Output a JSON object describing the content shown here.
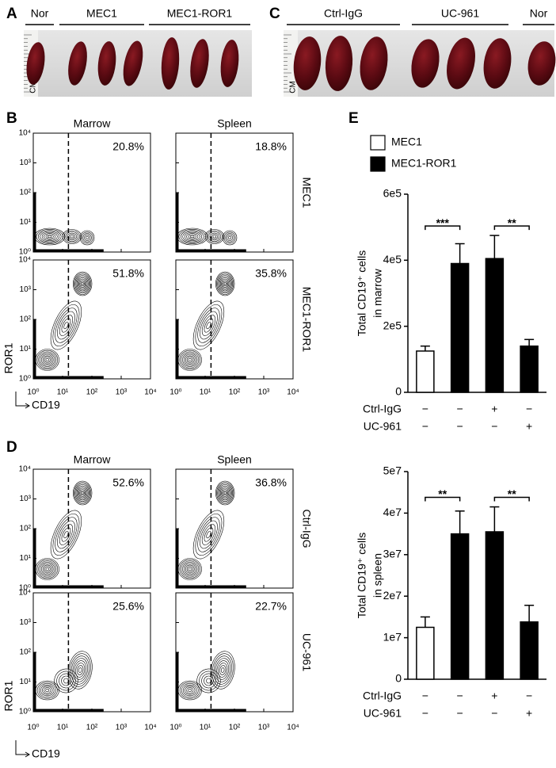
{
  "panel_labels": [
    "A",
    "B",
    "C",
    "D",
    "E"
  ],
  "photo_a": {
    "groups": [
      "Nor",
      "MEC1",
      "MEC1-ROR1"
    ],
    "ruler": "CM"
  },
  "photo_c": {
    "groups": [
      "Ctrl-IgG",
      "UC-961",
      "Nor"
    ],
    "ruler": "CM"
  },
  "flow_b": {
    "columns": [
      "Marrow",
      "Spleen"
    ],
    "rows": [
      "MEC1",
      "MEC1-ROR1"
    ],
    "percentages": [
      [
        "20.8%",
        "18.8%"
      ],
      [
        "51.8%",
        "35.8%"
      ]
    ],
    "ticks": [
      "10⁰",
      "10¹",
      "10²",
      "10³",
      "10⁴"
    ],
    "y_label": "ROR1",
    "x_label": "CD19"
  },
  "flow_d": {
    "columns": [
      "Marrow",
      "Spleen"
    ],
    "rows": [
      "Ctrl-IgG",
      "UC-961"
    ],
    "percentages": [
      [
        "52.6%",
        "36.8%"
      ],
      [
        "25.6%",
        "22.7%"
      ]
    ],
    "ticks": [
      "10⁰",
      "10¹",
      "10²",
      "10³",
      "10⁴"
    ],
    "y_label": "ROR1",
    "x_label": "CD19"
  },
  "chart_data": [
    {
      "type": "bar",
      "y_label": [
        "Total CD19⁺ cells",
        "in marrow"
      ],
      "categories": [
        null,
        null,
        null,
        null
      ],
      "series": [
        {
          "name": "MEC1",
          "color": "#ffffff",
          "values": [
            125000,
            null,
            null,
            null
          ],
          "errors": [
            15000,
            null,
            null,
            null
          ]
        },
        {
          "name": "MEC1-ROR1",
          "color": "#000000",
          "values": [
            null,
            390000,
            405000,
            140000
          ],
          "errors": [
            null,
            60000,
            70000,
            20000
          ]
        }
      ],
      "ylim": [
        0,
        600000
      ],
      "yticks": [
        0,
        {
          "value": 200000,
          "label": "2e5"
        },
        {
          "value": 400000,
          "label": "4e5"
        },
        {
          "value": 600000,
          "label": "6e5"
        }
      ],
      "treatments": [
        {
          "name": "Ctrl-IgG",
          "values": [
            "−",
            "−",
            "+",
            "−"
          ]
        },
        {
          "name": "UC-961",
          "values": [
            "−",
            "−",
            "−",
            "+"
          ]
        }
      ],
      "significance": [
        "***",
        "**"
      ]
    },
    {
      "type": "bar",
      "y_label": [
        "Total CD19⁺ cells",
        "in spleen"
      ],
      "categories": [
        null,
        null,
        null,
        null
      ],
      "series": [
        {
          "color": "#ffffff",
          "values": [
            12500000,
            null,
            null,
            null
          ],
          "errors": [
            2500000,
            null,
            null,
            null
          ]
        },
        {
          "color": "#000000",
          "values": [
            null,
            35000000,
            35500000,
            13800000
          ],
          "errors": [
            null,
            5500000,
            6000000,
            4000000
          ]
        }
      ],
      "ylim": [
        0,
        50000000
      ],
      "yticks": [
        0,
        {
          "value": 10000000,
          "label": "1e7"
        },
        {
          "value": 20000000,
          "label": "2e7"
        },
        {
          "value": 30000000,
          "label": "3e7"
        },
        {
          "value": 40000000,
          "label": "4e7"
        },
        {
          "value": 50000000,
          "label": "5e7"
        }
      ],
      "treatments": [
        {
          "name": "Ctrl-IgG",
          "values": [
            "−",
            "−",
            "+",
            "−"
          ]
        },
        {
          "name": "UC-961",
          "values": [
            "−",
            "−",
            "−",
            "+"
          ]
        }
      ],
      "significance": [
        "**",
        "**"
      ]
    }
  ]
}
